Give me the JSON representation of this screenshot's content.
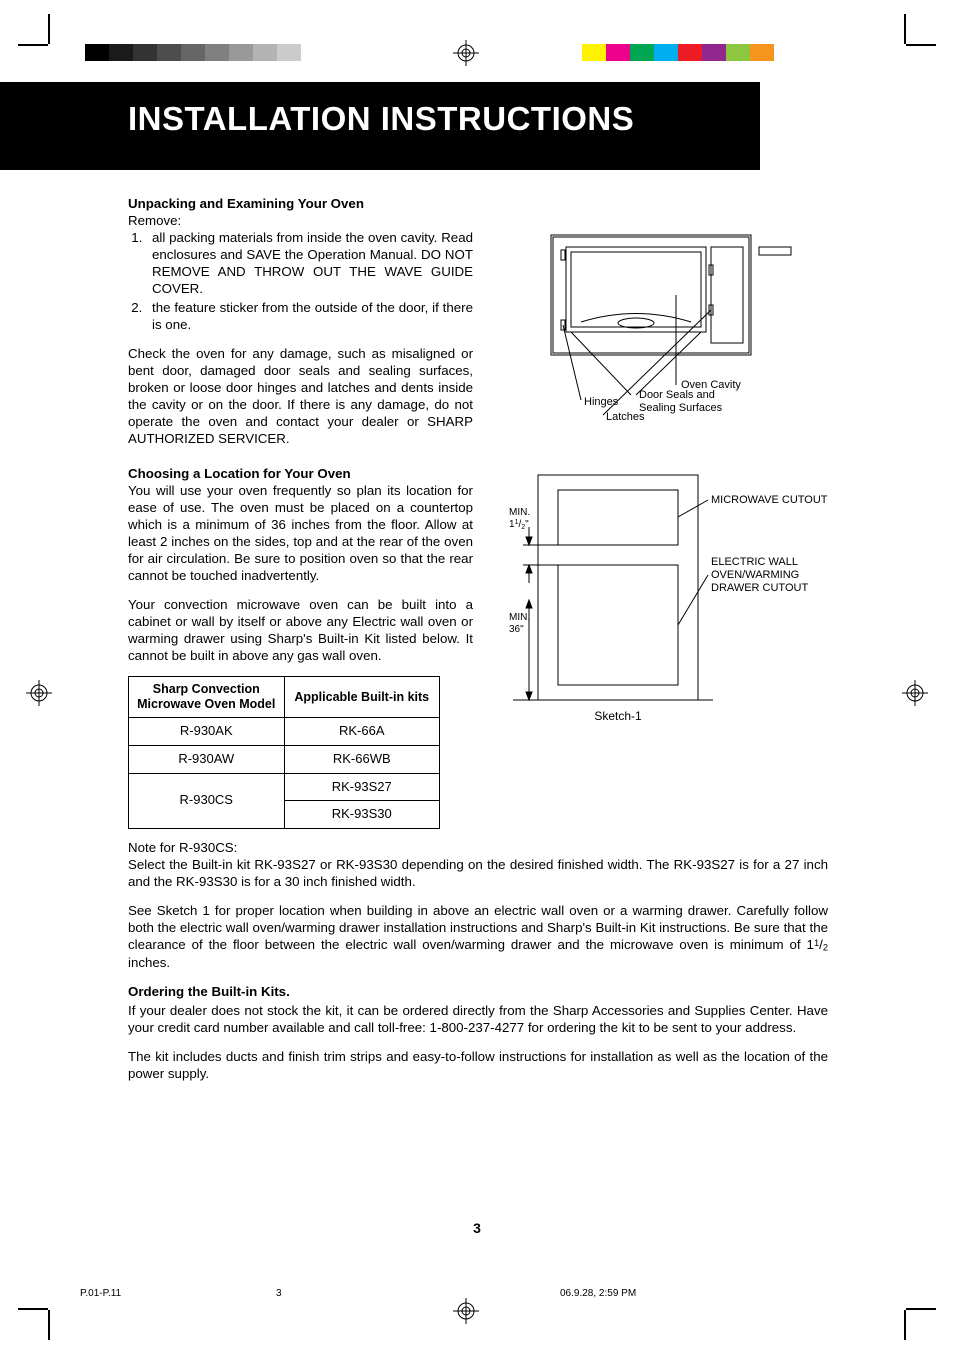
{
  "printer_marks": {
    "gray_swatches": [
      "#000000",
      "#1a1a1a",
      "#333333",
      "#4d4d4d",
      "#666666",
      "#808080",
      "#999999",
      "#b3b3b3",
      "#cccccc"
    ],
    "color_swatches": [
      "#fff200",
      "#ec008c",
      "#00a651",
      "#00aeef",
      "#ed1c24",
      "#92278f",
      "#8dc63f",
      "#f7941d"
    ],
    "reg_mark_color": "#000000"
  },
  "title": "INSTALLATION INSTRUCTIONS",
  "section1": {
    "heading": "Unpacking and Examining Your Oven",
    "remove_label": "Remove:",
    "item1": "all packing materials from inside the oven cavity. Read enclosures and SAVE the Operation Manual. DO NOT REMOVE AND THROW OUT THE WAVE GUIDE COVER.",
    "item2": "the feature sticker from the outside of the door, if there is one.",
    "para1": "Check the oven for any damage, such as misaligned or bent door, damaged door seals and sealing surfaces, broken or loose door hinges and latches and dents inside the cavity or on the door. If there is any damage, do not operate the oven and contact your dealer or SHARP AUTHORIZED SERVICER."
  },
  "section2": {
    "heading": "Choosing a Location for Your Oven",
    "para1": "You will use your oven frequently so plan its location for ease of use. The oven must be placed on a countertop which is a minimum of 36 inches from the floor. Allow at least 2 inches on the sides, top and at the rear of the oven for air circulation. Be sure to position oven so that the rear cannot be touched inadvertently.",
    "para2": "Your convection microwave oven can be built into  a cabinet or wall by itself or above any Electric wall oven or warming drawer using Sharp's Built-in Kit listed below. It cannot be built in above any gas wall oven."
  },
  "kit_table": {
    "header_model": "Sharp Convection Microwave Oven Model",
    "header_kit": "Applicable Built-in kits",
    "rows": [
      {
        "model": "R-930AK",
        "kit": "RK-66A"
      },
      {
        "model": "R-930AW",
        "kit": "RK-66WB"
      },
      {
        "model": "R-930CS",
        "kits": [
          "RK-93S27",
          "RK-93S30"
        ]
      }
    ]
  },
  "oven_diagram": {
    "label_cavity": "Oven Cavity",
    "label_hinges": "Hinges",
    "label_latches": "Latches",
    "label_seals_l1": "Door Seals and",
    "label_seals_l2": "Sealing Surfaces",
    "stroke": "#000000",
    "label_fontsize": 11
  },
  "cutout_diagram": {
    "label_micro": "MICROWAVE CUTOUT",
    "label_wall_l1": "ELECTRIC WALL",
    "label_wall_l2": "OVEN/WARMING",
    "label_wall_l3": "DRAWER CUTOUT",
    "min_gap_label": "MIN.",
    "min_gap_value_whole": "1",
    "min_gap_value_num": "1",
    "min_gap_value_den": "2",
    "min_gap_value_unit": "\"",
    "min_floor_label": "MIN.",
    "min_floor_value": "36\"",
    "caption": "Sketch-1",
    "stroke": "#000000",
    "label_fontsize": 11
  },
  "note_cs_heading": "Note for R-930CS:",
  "note_cs_body": "Select the Built-in kit RK-93S27 or RK-93S30 depending on the desired finished width. The RK-93S27 is for a 27 inch and the RK-93S30 is for a 30 inch finished width.",
  "sketch_para_pre": "See Sketch 1 for proper location when building in above an electric wall oven or a warming drawer. Carefully follow both the electric wall oven/warming drawer installation instructions and Sharp's Built-in Kit instructions. Be sure that the clearance of the floor between the electric wall oven/warming drawer and the microwave oven is minimum of 1",
  "sketch_para_num": "1",
  "sketch_para_den": "2",
  "sketch_para_post": " inches.",
  "section3": {
    "heading": "Ordering the Built-in Kits.",
    "para1": "If your dealer does not stock the kit, it can be ordered directly from the Sharp Accessories and Supplies Center. Have your credit card number available and call toll-free: 1-800-237-4277 for ordering the kit to be sent to your address.",
    "para2": "The kit includes ducts and finish trim strips and easy-to-follow instructions for installation as well as the location of the power supply."
  },
  "page_number": "3",
  "imposition": {
    "file": "P.01-P.11",
    "page": "3",
    "timestamp": "06.9.28, 2:59 PM"
  }
}
